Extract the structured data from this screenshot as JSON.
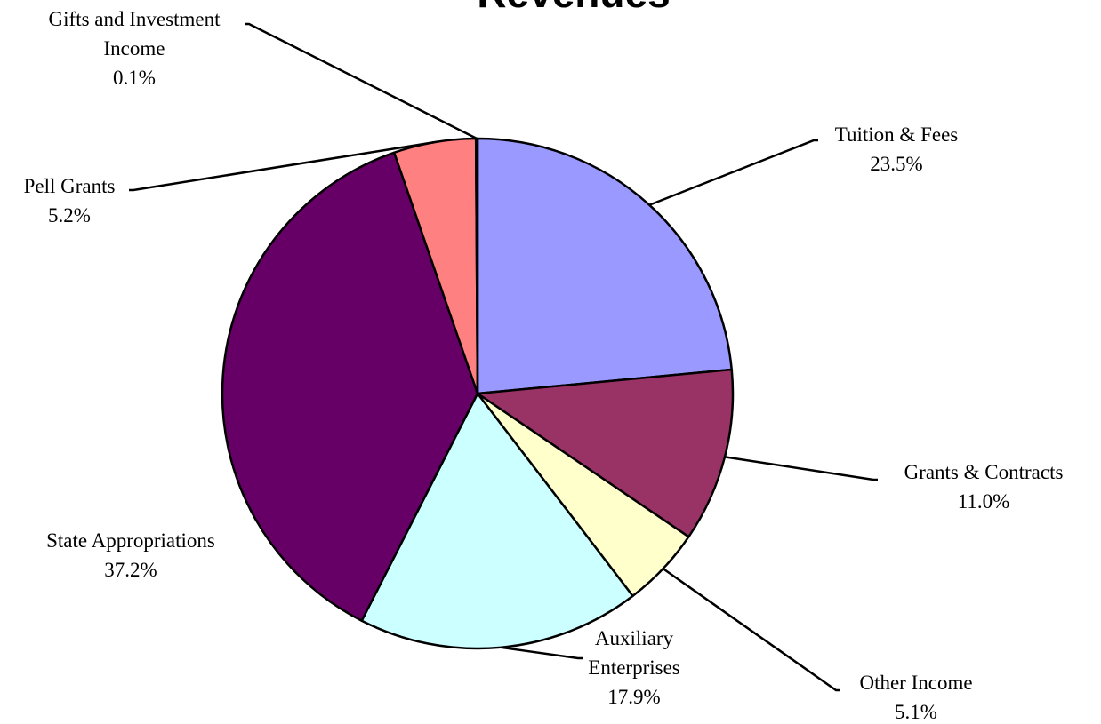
{
  "chart_data": {
    "type": "pie",
    "title": "Revenues",
    "categories": [
      "Tuition & Fees",
      "Grants & Contracts",
      "Other Income",
      "Auxiliary Enterprises",
      "State Appropriations",
      "Pell Grants",
      "Gifts and Investment Income"
    ],
    "values": [
      23.5,
      11.0,
      5.1,
      17.9,
      37.2,
      5.2,
      0.1
    ],
    "value_labels": [
      "23.5%",
      "11.0%",
      "5.1%",
      "17.9%",
      "37.2%",
      "5.2%",
      "0.1%"
    ],
    "colors": [
      "#9999ff",
      "#993366",
      "#ffffcc",
      "#ccffff",
      "#660066",
      "#ff8080",
      "#0066cc"
    ]
  }
}
